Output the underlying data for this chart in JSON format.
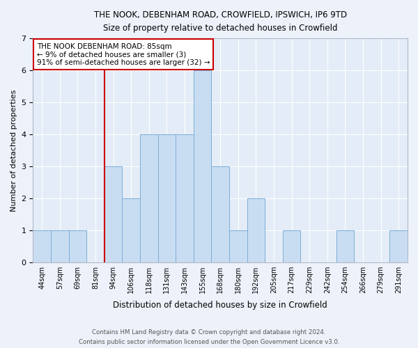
{
  "title": "THE NOOK, DEBENHAM ROAD, CROWFIELD, IPSWICH, IP6 9TD",
  "subtitle": "Size of property relative to detached houses in Crowfield",
  "xlabel": "Distribution of detached houses by size in Crowfield",
  "ylabel": "Number of detached properties",
  "bin_labels": [
    "44sqm",
    "57sqm",
    "69sqm",
    "81sqm",
    "94sqm",
    "106sqm",
    "118sqm",
    "131sqm",
    "143sqm",
    "155sqm",
    "168sqm",
    "180sqm",
    "192sqm",
    "205sqm",
    "217sqm",
    "229sqm",
    "242sqm",
    "254sqm",
    "266sqm",
    "279sqm",
    "291sqm"
  ],
  "bar_values": [
    1,
    1,
    1,
    0,
    3,
    2,
    4,
    4,
    4,
    6,
    3,
    1,
    2,
    0,
    1,
    0,
    0,
    1,
    0,
    0,
    1
  ],
  "bar_color": "#c9ddf2",
  "bar_edge_color": "#7badd6",
  "ylim": [
    0,
    7
  ],
  "yticks": [
    0,
    1,
    2,
    3,
    4,
    5,
    6,
    7
  ],
  "property_line_x": 3.5,
  "property_line_color": "#cc0000",
  "annotation_text": "THE NOOK DEBENHAM ROAD: 85sqm\n← 9% of detached houses are smaller (3)\n91% of semi-detached houses are larger (32) →",
  "annotation_box_color": "#ffffff",
  "annotation_box_edge": "#cc0000",
  "footer1": "Contains HM Land Registry data © Crown copyright and database right 2024.",
  "footer2": "Contains public sector information licensed under the Open Government Licence v3.0.",
  "background_color": "#edf2fa",
  "plot_bg_color": "#e4ecf7",
  "grid_color": "#ffffff"
}
